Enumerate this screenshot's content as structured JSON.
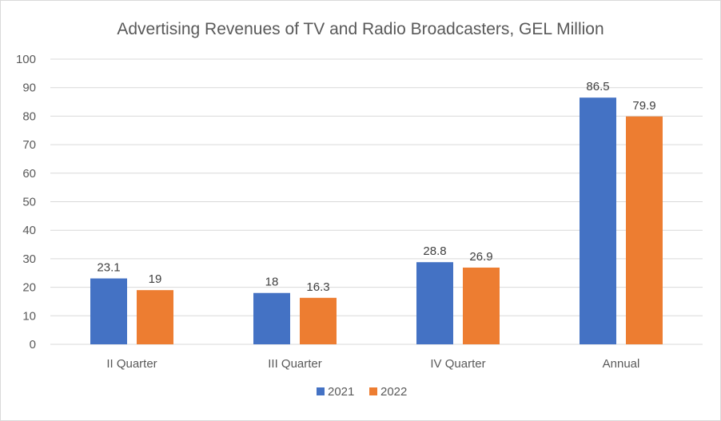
{
  "chart_data": {
    "type": "bar",
    "title": "Advertising Revenues of TV and Radio Broadcasters, GEL Million",
    "categories": [
      "II Quarter",
      "III Quarter",
      "IV Quarter",
      "Annual"
    ],
    "series": [
      {
        "name": "2021",
        "color": "#4472c4",
        "values": [
          23.1,
          18,
          28.8,
          86.5
        ]
      },
      {
        "name": "2022",
        "color": "#ed7d31",
        "values": [
          19,
          16.3,
          26.9,
          79.9
        ]
      }
    ],
    "ylim": [
      0,
      100
    ],
    "yticks": [
      0,
      10,
      20,
      30,
      40,
      50,
      60,
      70,
      80,
      90,
      100
    ],
    "grid": true,
    "legend": "bottom-center",
    "data_labels": true
  }
}
